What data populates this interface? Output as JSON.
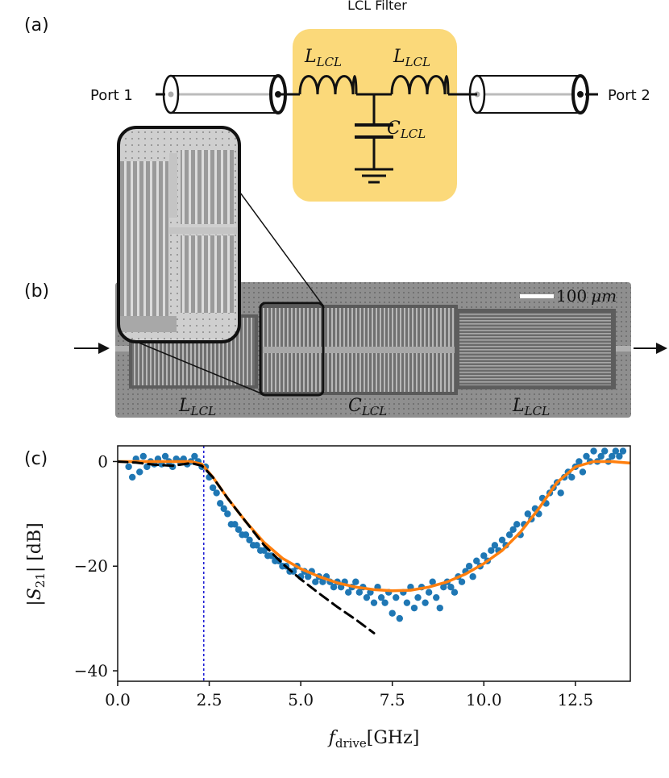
{
  "panels": {
    "a": {
      "label": "(a)",
      "title": "LCL Filter",
      "port_left": "Port 1",
      "port_right": "Port 2",
      "inductor_left_label": {
        "base": "L",
        "sub": "LCL"
      },
      "inductor_right_label": {
        "base": "L",
        "sub": "LCL"
      },
      "capacitor_label": {
        "base": "C",
        "sub": "LCL"
      },
      "highlight_color": "#fbd97a"
    },
    "b": {
      "label": "(b)",
      "scalebar_text": "100",
      "scalebar_unit": "μm",
      "label_left": {
        "base": "L",
        "sub": "LCL"
      },
      "label_mid": {
        "base": "C",
        "sub": "LCL"
      },
      "label_right": {
        "base": "L",
        "sub": "LCL"
      }
    },
    "c": {
      "label": "(c)",
      "ylabel": {
        "pre": "|S",
        "sub": "21",
        "post": "| [dB]"
      },
      "xlabel": {
        "pre": "f",
        "sub": "drive",
        "post": "[GHz]"
      }
    }
  },
  "chart_data": {
    "type": "scatter",
    "xlim": [
      0,
      14
    ],
    "ylim": [
      -42,
      3
    ],
    "xticks": [
      0.0,
      2.5,
      5.0,
      7.5,
      10.0,
      12.5
    ],
    "xtick_labels": [
      "0.0",
      "2.5",
      "5.0",
      "7.5",
      "10.0",
      "12.5"
    ],
    "yticks": [
      0,
      -20,
      -40
    ],
    "ytick_labels": [
      "0",
      "−20",
      "−40"
    ],
    "grid": false,
    "vline": {
      "x": 2.35,
      "color": "#1f1fd6",
      "style": "dotted"
    },
    "series": [
      {
        "kind": "points",
        "color": "#1f77b4",
        "x": [
          0.3,
          0.4,
          0.5,
          0.6,
          0.7,
          0.8,
          0.9,
          1.0,
          1.1,
          1.2,
          1.3,
          1.4,
          1.5,
          1.6,
          1.7,
          1.8,
          1.9,
          2.0,
          2.1,
          2.2,
          2.3,
          2.4,
          2.5,
          2.6,
          2.7,
          2.8,
          2.9,
          3.0,
          3.1,
          3.2,
          3.3,
          3.4,
          3.5,
          3.6,
          3.7,
          3.8,
          3.9,
          4.0,
          4.1,
          4.2,
          4.3,
          4.4,
          4.5,
          4.6,
          4.7,
          4.8,
          4.9,
          5.0,
          5.1,
          5.2,
          5.3,
          5.4,
          5.5,
          5.6,
          5.7,
          5.8,
          5.9,
          6.0,
          6.1,
          6.2,
          6.3,
          6.4,
          6.5,
          6.6,
          6.7,
          6.8,
          6.9,
          7.0,
          7.1,
          7.2,
          7.3,
          7.4,
          7.5,
          7.6,
          7.7,
          7.8,
          7.9,
          8.0,
          8.1,
          8.2,
          8.3,
          8.4,
          8.5,
          8.6,
          8.7,
          8.8,
          8.9,
          9.0,
          9.1,
          9.2,
          9.3,
          9.4,
          9.5,
          9.6,
          9.7,
          9.8,
          9.9,
          10.0,
          10.1,
          10.2,
          10.3,
          10.4,
          10.5,
          10.6,
          10.7,
          10.8,
          10.9,
          11.0,
          11.1,
          11.2,
          11.3,
          11.4,
          11.5,
          11.6,
          11.7,
          11.8,
          11.9,
          12.0,
          12.1,
          12.2,
          12.3,
          12.4,
          12.5,
          12.6,
          12.7,
          12.8,
          12.9,
          13.0,
          13.1,
          13.2,
          13.3,
          13.4,
          13.5,
          13.6,
          13.7,
          13.8
        ],
        "y": [
          -1,
          -3,
          0.5,
          -2,
          1,
          -1,
          0,
          -0.5,
          0.5,
          -0.5,
          1,
          0,
          -1,
          0.5,
          0,
          0.5,
          -0.5,
          0,
          1,
          0,
          -1,
          -1,
          -3,
          -5,
          -6,
          -8,
          -9,
          -10,
          -12,
          -12,
          -13,
          -14,
          -14,
          -15,
          -16,
          -16,
          -17,
          -17,
          -18,
          -18,
          -19,
          -19,
          -20,
          -20,
          -21,
          -21,
          -20,
          -22,
          -21,
          -22,
          -21,
          -23,
          -22,
          -23,
          -22,
          -23,
          -24,
          -23,
          -24,
          -23,
          -25,
          -24,
          -23,
          -25,
          -24,
          -26,
          -25,
          -27,
          -24,
          -26,
          -27,
          -25,
          -29,
          -26,
          -30,
          -25,
          -27,
          -24,
          -28,
          -26,
          -24,
          -27,
          -25,
          -23,
          -26,
          -28,
          -24,
          -23,
          -24,
          -25,
          -22,
          -23,
          -21,
          -20,
          -22,
          -19,
          -20,
          -18,
          -19,
          -17,
          -16,
          -17,
          -15,
          -16,
          -14,
          -13,
          -12,
          -14,
          -12,
          -10,
          -11,
          -9,
          -10,
          -7,
          -8,
          -6,
          -5,
          -4,
          -6,
          -3,
          -2,
          -3,
          -1,
          0,
          -2,
          1,
          0,
          2,
          0,
          1,
          2,
          0,
          1,
          2,
          1,
          2
        ]
      },
      {
        "kind": "fit",
        "color": "#ff7f0e",
        "x": [
          0,
          0.5,
          1.0,
          1.5,
          2.0,
          2.3,
          2.6,
          3.0,
          3.5,
          4.0,
          4.5,
          5.0,
          5.5,
          6.0,
          6.5,
          7.0,
          7.5,
          8.0,
          8.5,
          9.0,
          9.5,
          10.0,
          10.5,
          11.0,
          11.5,
          12.0,
          12.5,
          13.0,
          13.5,
          14.0
        ],
        "y": [
          0,
          0,
          0,
          0,
          0,
          -0.5,
          -3,
          -7,
          -11.5,
          -15.5,
          -18.5,
          -20.5,
          -22,
          -23.2,
          -24,
          -24.5,
          -24.7,
          -24.6,
          -24,
          -23,
          -21.5,
          -19.5,
          -17,
          -13.5,
          -9,
          -4,
          -1,
          0,
          0,
          -0.3
        ]
      },
      {
        "kind": "model",
        "color": "#000000",
        "style": "dashed",
        "x": [
          0,
          0.5,
          1.0,
          1.5,
          2.0,
          2.3,
          2.6,
          3.0,
          3.5,
          4.0,
          4.5,
          5.0,
          5.5,
          6.0,
          6.5,
          7.0
        ],
        "y": [
          0,
          -0.2,
          -0.6,
          -0.8,
          -0.3,
          -0.8,
          -3,
          -7,
          -11.5,
          -16,
          -19.5,
          -22.5,
          -25.2,
          -27.8,
          -30.2,
          -32.8
        ]
      }
    ]
  }
}
